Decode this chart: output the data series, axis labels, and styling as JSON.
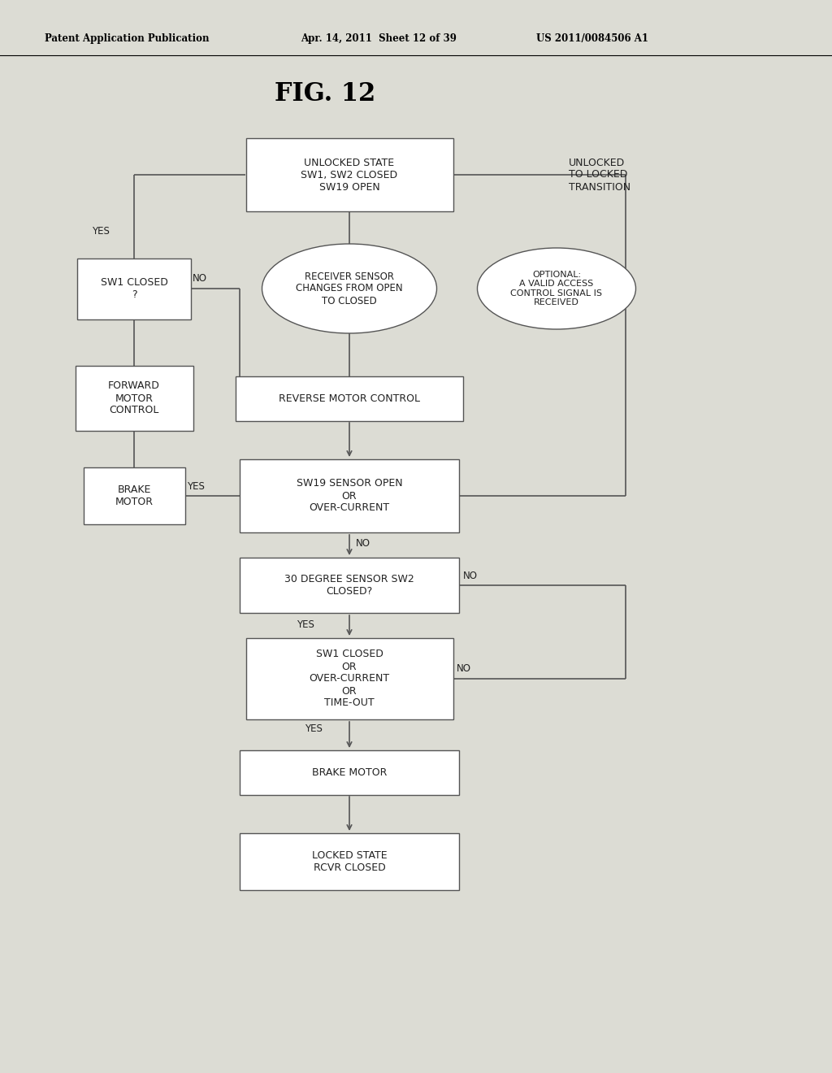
{
  "title": "FIG. 12",
  "header_left": "Patent Application Publication",
  "header_center": "Apr. 14, 2011  Sheet 12 of 39",
  "header_right": "US 2011/0084506 A1",
  "bg_color": "#ffffff",
  "fig_bg": "#e8e8e4"
}
